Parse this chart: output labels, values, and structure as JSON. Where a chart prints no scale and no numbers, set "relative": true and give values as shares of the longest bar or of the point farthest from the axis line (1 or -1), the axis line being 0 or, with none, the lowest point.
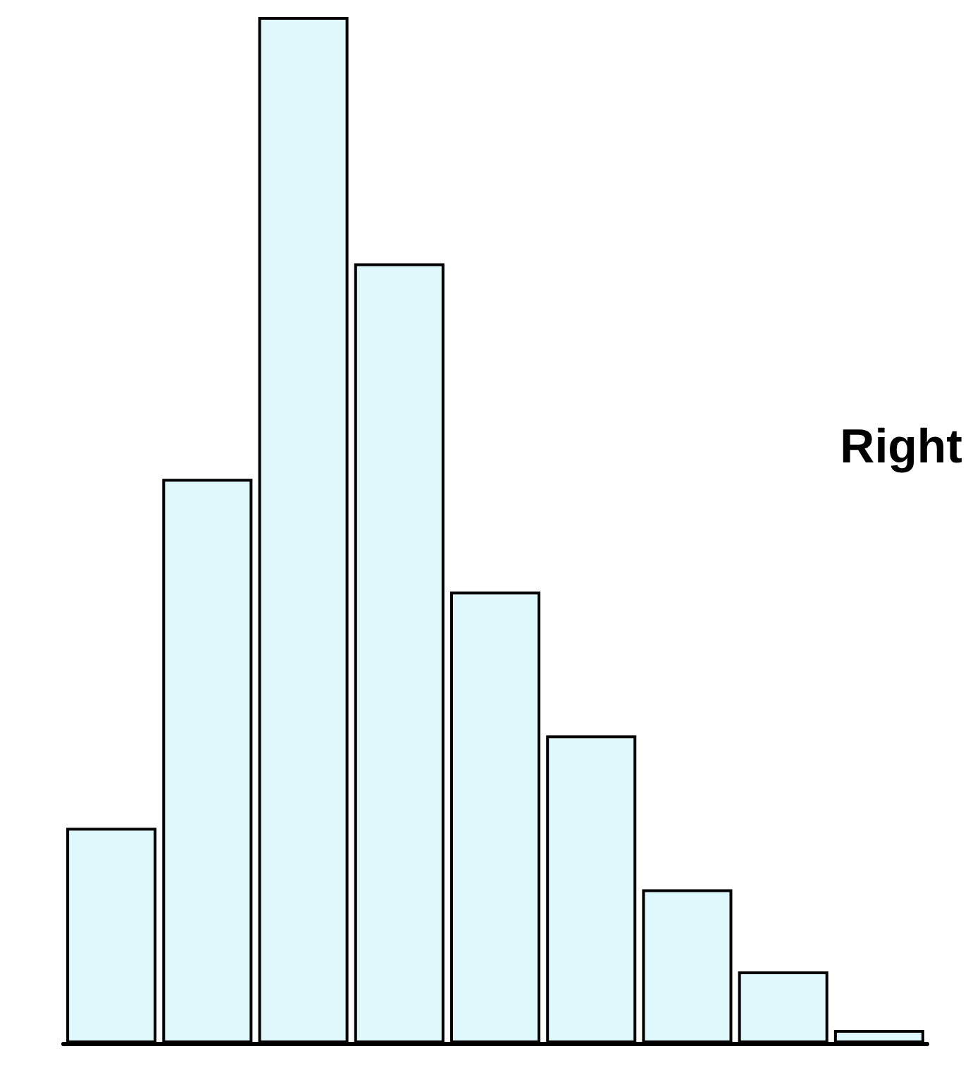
{
  "chart_data": {
    "type": "bar",
    "relative": true,
    "categories": [
      null,
      null,
      null,
      null,
      null,
      null,
      null,
      null,
      null
    ],
    "values": [
      0.21,
      0.55,
      1,
      0.76,
      0.44,
      0.3,
      0.15,
      0.07,
      0.013
    ],
    "color": "#dff8fc",
    "annotations": [
      "Right"
    ]
  }
}
